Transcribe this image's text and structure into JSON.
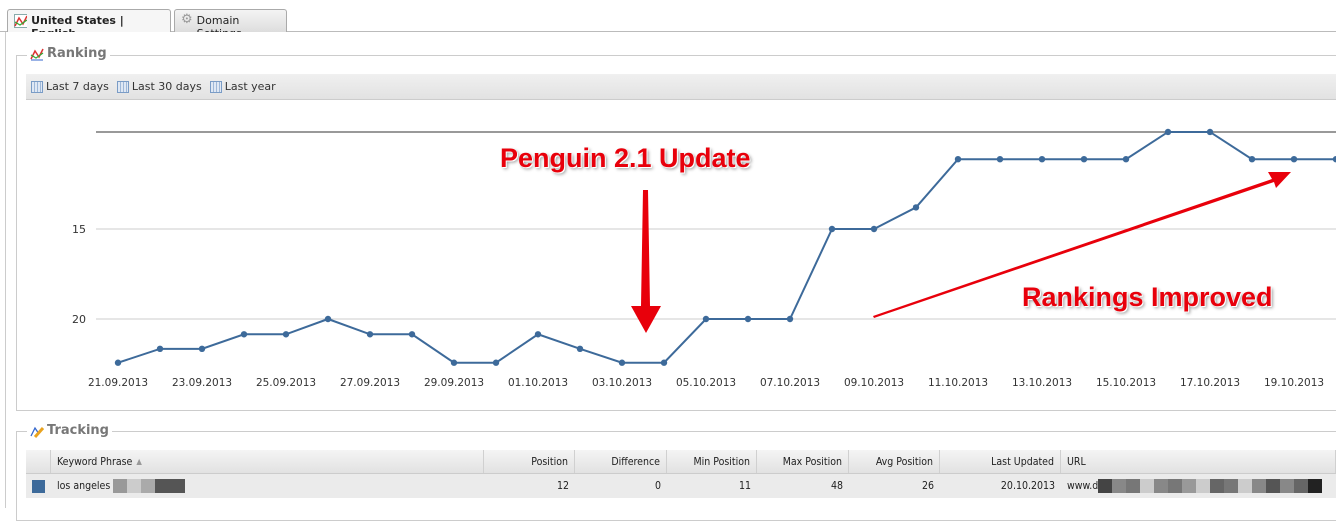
{
  "tabs": [
    {
      "label": "United States | English",
      "icon": "chart-icon",
      "active": true
    },
    {
      "label": "Domain Settings",
      "icon": "gear-icon",
      "active": false
    }
  ],
  "ranking": {
    "title": "Ranking",
    "periods": [
      {
        "label": "Last 7 days",
        "icon": "calendar-icon"
      },
      {
        "label": "Last 30 days",
        "icon": "calendar-icon"
      },
      {
        "label": "Last year",
        "icon": "calendar-icon"
      }
    ]
  },
  "annotations": {
    "penguin": "Penguin 2.1 Update",
    "improved": "Rankings Improved",
    "color": "#e8000b"
  },
  "chart_data": {
    "type": "line",
    "y_scale": "log",
    "y_reversed": true,
    "ylim": [
      11,
      24
    ],
    "y_ticks": [
      "15",
      "20"
    ],
    "x_tick_labels": [
      "21.09.2013",
      "23.09.2013",
      "25.09.2013",
      "27.09.2013",
      "29.09.2013",
      "01.10.2013",
      "03.10.2013",
      "05.10.2013",
      "07.10.2013",
      "09.10.2013",
      "11.10.2013",
      "13.10.2013",
      "15.10.2013",
      "17.10.2013",
      "19.10.2013"
    ],
    "x": [
      "21.09.2013",
      "22.09.2013",
      "23.09.2013",
      "24.09.2013",
      "25.09.2013",
      "26.09.2013",
      "27.09.2013",
      "28.09.2013",
      "29.09.2013",
      "30.09.2013",
      "01.10.2013",
      "02.10.2013",
      "03.10.2013",
      "04.10.2013",
      "05.10.2013",
      "06.10.2013",
      "07.10.2013",
      "08.10.2013",
      "09.10.2013",
      "10.10.2013",
      "11.10.2013",
      "12.10.2013",
      "13.10.2013",
      "14.10.2013",
      "15.10.2013",
      "16.10.2013",
      "17.10.2013",
      "18.10.2013",
      "19.10.2013",
      "20.10.2013"
    ],
    "values": [
      23,
      22,
      22,
      21,
      21,
      20,
      21,
      21,
      23,
      23,
      21,
      22,
      23,
      23,
      20,
      20,
      20,
      15,
      15,
      14,
      12,
      12,
      12,
      12,
      12,
      11,
      11,
      12,
      12,
      12
    ],
    "color": "#3d6a9a",
    "grid": true
  },
  "tracking": {
    "title": "Tracking",
    "columns": [
      "Keyword Phrase",
      "Position",
      "Difference",
      "Min Position",
      "Max Position",
      "Avg Position",
      "Last Updated",
      "URL"
    ],
    "rows": [
      {
        "color": "#3d6a9a",
        "keyword": "los angeles",
        "position": "12",
        "difference": "0",
        "min": "11",
        "max": "48",
        "avg": "26",
        "updated": "20.10.2013",
        "url": "www.d"
      }
    ]
  }
}
